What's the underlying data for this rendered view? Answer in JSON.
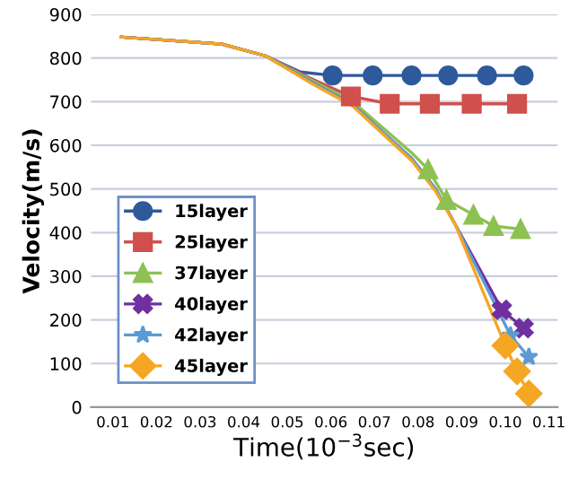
{
  "chart_data": {
    "type": "line",
    "xlabel": "Time(10$^{−3}$sec)",
    "ylabel": "Velocity(m/s)",
    "xlim": [
      0.005,
      0.112
    ],
    "ylim": [
      0,
      900
    ],
    "xticks": [
      {
        "value": 0.01,
        "label": "0.01"
      },
      {
        "value": 0.02,
        "label": "0.02"
      },
      {
        "value": 0.03,
        "label": "0.03"
      },
      {
        "value": 0.04,
        "label": "0.04"
      },
      {
        "value": 0.05,
        "label": "0.05"
      },
      {
        "value": 0.06,
        "label": "0.06"
      },
      {
        "value": 0.07,
        "label": "0.07"
      },
      {
        "value": 0.08,
        "label": "0.08"
      },
      {
        "value": 0.09,
        "label": "0.09"
      },
      {
        "value": 0.1,
        "label": "0.10"
      },
      {
        "value": 0.11,
        "label": "0.11"
      }
    ],
    "yticks": [
      0,
      100,
      200,
      300,
      400,
      500,
      600,
      700,
      800,
      900
    ],
    "grid": "y",
    "legend": "bottom left",
    "series": [
      {
        "color": "#2e5a9c",
        "marker": "none",
        "x": [
          0.012,
          0.035,
          0.045,
          0.053,
          0.0604
        ],
        "values": [
          848,
          832,
          805,
          768,
          760
        ]
      },
      {
        "color": "#d0504d",
        "marker": "none",
        "x": [
          0.012,
          0.035,
          0.045,
          0.055,
          0.0646
        ],
        "values": [
          848,
          832,
          805,
          755,
          712
        ]
      },
      {
        "color": "#8dc152",
        "marker": "none",
        "x": [
          0.012,
          0.035,
          0.045,
          0.055,
          0.065,
          0.0785,
          0.0823
        ],
        "values": [
          848,
          832,
          805,
          752,
          700,
          583,
          545
        ]
      },
      {
        "color": "#7030a0",
        "marker": "none",
        "x": [
          0.012,
          0.035,
          0.045,
          0.055,
          0.065,
          0.0785,
          0.084,
          0.0885,
          0.0992
        ],
        "values": [
          848,
          832,
          805,
          748,
          693,
          570,
          500,
          419,
          223
        ]
      },
      {
        "color": "#5b9bd5",
        "marker": "none",
        "x": [
          0.012,
          0.035,
          0.045,
          0.055,
          0.065,
          0.0785,
          0.084,
          0.0885,
          0.1012
        ],
        "values": [
          848,
          832,
          805,
          748,
          693,
          570,
          500,
          419,
          164
        ]
      },
      {
        "color": "#f5a623",
        "marker": "none",
        "x": [
          0.012,
          0.035,
          0.045,
          0.055,
          0.065,
          0.0785,
          0.084,
          0.0885,
          0.1
        ],
        "values": [
          848,
          832,
          805,
          745,
          690,
          565,
          495,
          419,
          141
        ]
      },
      {
        "name": "15layer",
        "color": "#2e5a9c",
        "marker": "circle",
        "x": [
          0.0604,
          0.0696,
          0.0785,
          0.0869,
          0.0958,
          0.1042
        ],
        "values": [
          760,
          760,
          760,
          760,
          760,
          760
        ]
      },
      {
        "name": "25layer",
        "color": "#d0504d",
        "marker": "square",
        "x": [
          0.0646,
          0.0735,
          0.0827,
          0.0923,
          0.1027
        ],
        "values": [
          712,
          695,
          695,
          695,
          695
        ]
      },
      {
        "name": "37layer",
        "color": "#8dc152",
        "marker": "triangle",
        "x": [
          0.0823,
          0.0865,
          0.0927,
          0.0973,
          0.1035
        ],
        "values": [
          545,
          475,
          441,
          415,
          408
        ]
      },
      {
        "name": "40layer",
        "color": "#7030a0",
        "marker": "cross",
        "x": [
          0.0992,
          0.1042
        ],
        "values": [
          223,
          181
        ]
      },
      {
        "name": "42layer",
        "color": "#5b9bd5",
        "marker": "star",
        "x": [
          0.1012,
          0.1054
        ],
        "values": [
          164,
          115
        ]
      },
      {
        "name": "45layer",
        "color": "#f5a623",
        "marker": "diamond",
        "x": [
          0.1,
          0.1027,
          0.1054
        ],
        "values": [
          141,
          82,
          31
        ]
      }
    ]
  }
}
